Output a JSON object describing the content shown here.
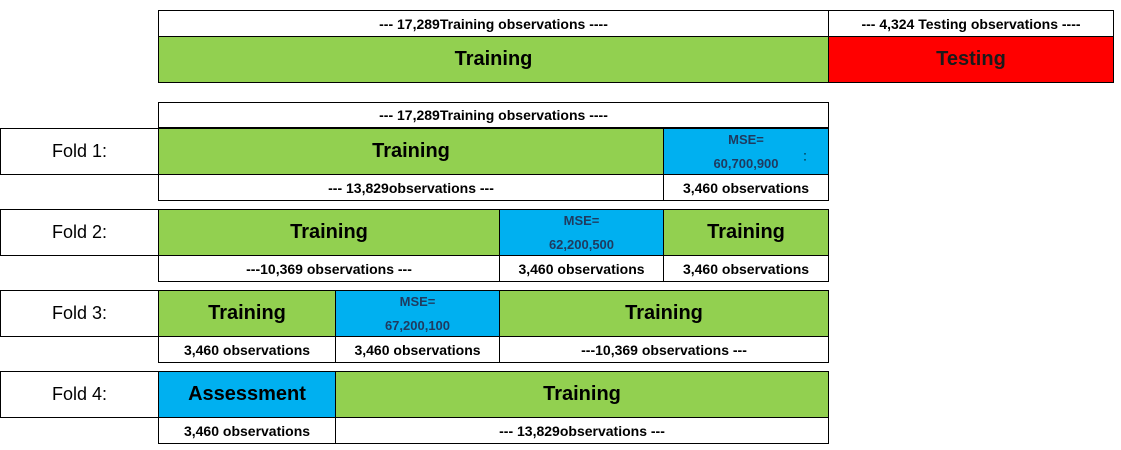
{
  "top": {
    "train_label": "--- 17,289Training observations ----",
    "test_label": "--- 4,324 Testing observations ----",
    "training": "Training",
    "testing": "Testing"
  },
  "cv_header": "--- 17,289Training observations ----",
  "folds": [
    {
      "name": "Fold 1:",
      "blocks": [
        "Training"
      ],
      "mse_title": "MSE=",
      "mse_value": "60,700,900",
      "obs": [
        "--- 13,829observations ---",
        "3,460 observations"
      ]
    },
    {
      "name": "Fold 2:",
      "blocks": [
        "Training",
        "Training"
      ],
      "mse_title": "MSE=",
      "mse_value": "62,200,500",
      "obs": [
        "---10,369 observations ---",
        "3,460 observations",
        "3,460 observations"
      ]
    },
    {
      "name": "Fold 3:",
      "blocks": [
        "Training",
        "Training"
      ],
      "mse_title": "MSE=",
      "mse_value": "67,200,100",
      "obs": [
        "3,460 observations",
        "3,460 observations",
        "---10,369 observations ---"
      ]
    },
    {
      "name": "Fold 4:",
      "blocks": [
        "Assessment",
        "Training"
      ],
      "obs": [
        "3,460 observations",
        "--- 13,829observations ---"
      ]
    }
  ],
  "colors": {
    "training": "#92d050",
    "testing": "#ff0000",
    "validation": "#00b0f0"
  }
}
